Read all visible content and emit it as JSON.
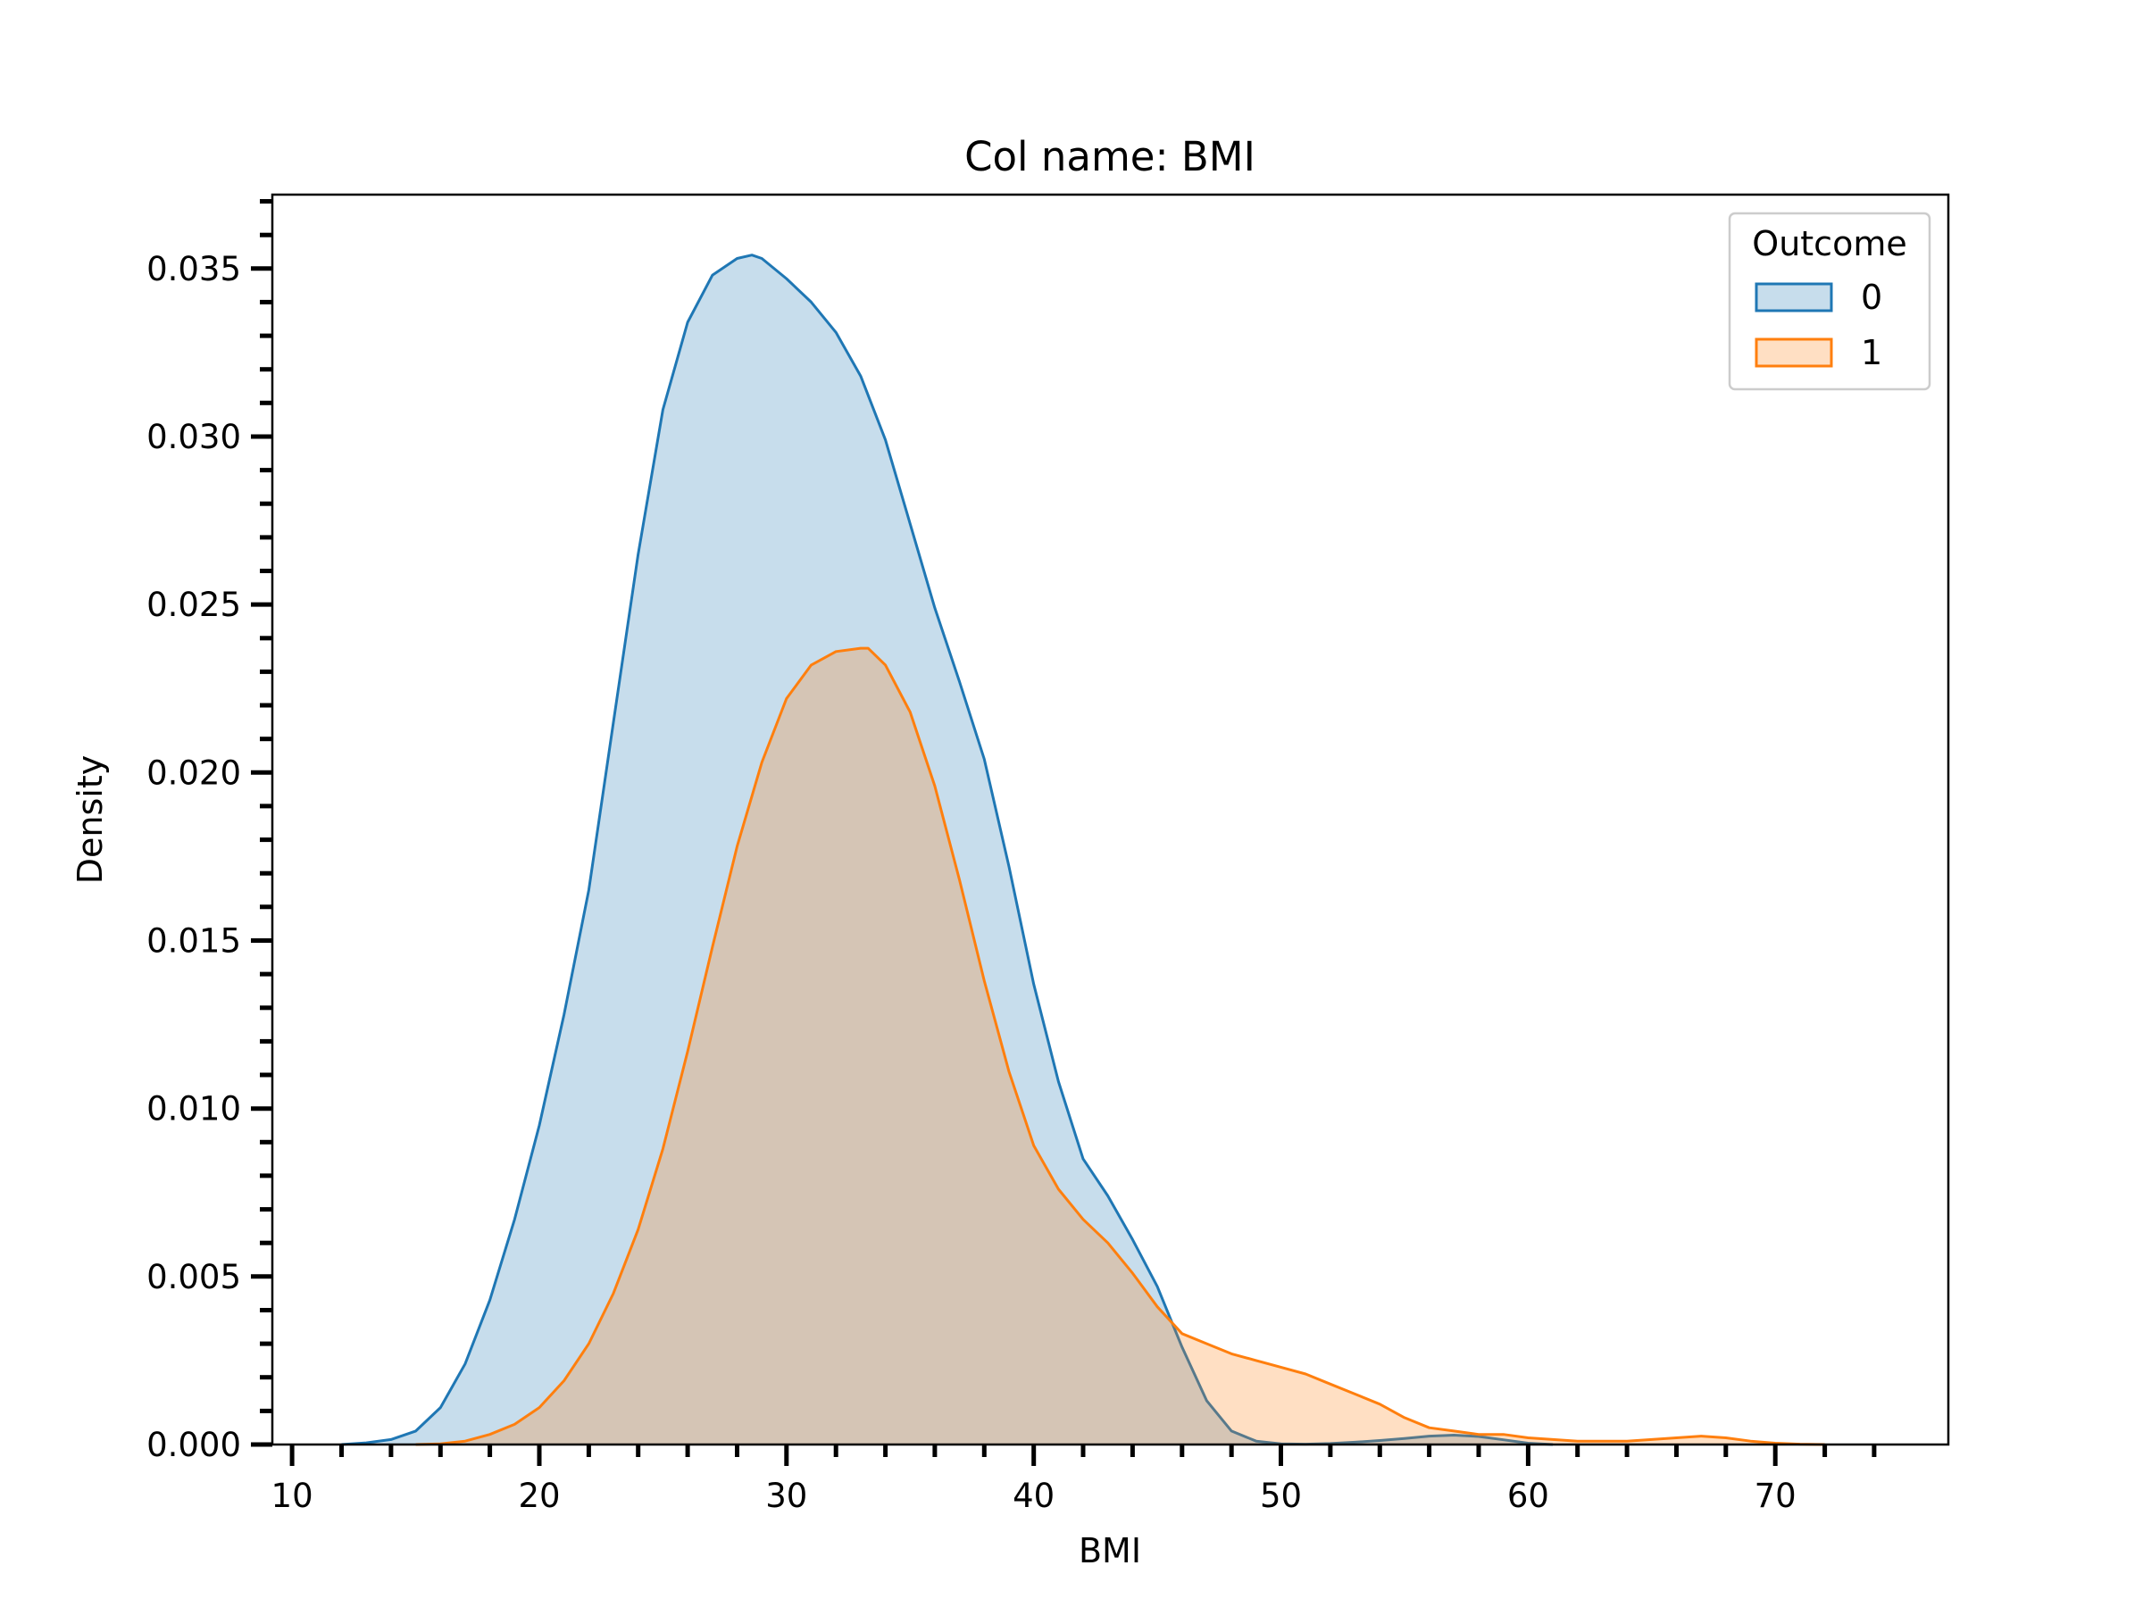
{
  "chart_data": {
    "type": "area",
    "title": "Col name: BMI",
    "xlabel": "BMI",
    "ylabel": "Density",
    "xlim": [
      9.2,
      77
    ],
    "ylim": [
      0,
      0.0372
    ],
    "x_ticks": [
      10,
      20,
      30,
      40,
      50,
      60,
      70
    ],
    "x_tick_labels": [
      "10",
      "20",
      "30",
      "40",
      "50",
      "60",
      "70"
    ],
    "x_minor_step": 2,
    "x_minor_range": [
      10,
      74
    ],
    "y_ticks": [
      0,
      0.005,
      0.01,
      0.015,
      0.02,
      0.025,
      0.03,
      0.035
    ],
    "y_tick_labels": [
      "0.000",
      "0.005",
      "0.010",
      "0.015",
      "0.020",
      "0.025",
      "0.030",
      "0.035"
    ],
    "y_minor_step": 0.001,
    "grid": false,
    "legend": {
      "title": "Outcome",
      "placement": "top-right"
    },
    "series": [
      {
        "name": "0",
        "line_color": "#1f77b4",
        "fill_color": "rgba(31,119,180,0.25)",
        "x": [
          12,
          13,
          14,
          15,
          16,
          17,
          18,
          19,
          20,
          21,
          22,
          23,
          24,
          25,
          26,
          27,
          28,
          28.6,
          29,
          30,
          31,
          32,
          33,
          34,
          35,
          36,
          37,
          38,
          39,
          40,
          41,
          42,
          43,
          44,
          45,
          46,
          47,
          48,
          49,
          50,
          51,
          52,
          53,
          54,
          55,
          56,
          57,
          58,
          59,
          60,
          61
        ],
        "y": [
          0.0,
          5e-05,
          0.00015,
          0.0004,
          0.0011,
          0.0024,
          0.0043,
          0.0067,
          0.0095,
          0.0128,
          0.0165,
          0.0215,
          0.0265,
          0.0308,
          0.0334,
          0.0348,
          0.0353,
          0.0354,
          0.0353,
          0.0347,
          0.034,
          0.0331,
          0.0318,
          0.0299,
          0.0274,
          0.0249,
          0.0227,
          0.0204,
          0.0172,
          0.0137,
          0.0108,
          0.0085,
          0.0074,
          0.0061,
          0.0047,
          0.0029,
          0.0013,
          0.0004,
          0.0001,
          2e-05,
          1e-05,
          3e-05,
          7e-05,
          0.00012,
          0.00018,
          0.00025,
          0.00028,
          0.00024,
          0.00014,
          4e-05,
          0.0
        ]
      },
      {
        "name": "1",
        "line_color": "#ff7f0e",
        "fill_color": "rgba(255,127,14,0.25)",
        "x": [
          15,
          16,
          17,
          18,
          19,
          20,
          21,
          22,
          23,
          24,
          25,
          26,
          27,
          28,
          29,
          30,
          31,
          32,
          33,
          33.3,
          34,
          35,
          36,
          37,
          38,
          39,
          40,
          41,
          42,
          43,
          44,
          45,
          46,
          47,
          48,
          49,
          50,
          51,
          52,
          53,
          54,
          55,
          56,
          57,
          58,
          59,
          60,
          61,
          62,
          63,
          64,
          65,
          66,
          67,
          68,
          69,
          70,
          71,
          72
        ],
        "y": [
          0.0,
          2e-05,
          0.0001,
          0.0003,
          0.0006,
          0.0011,
          0.0019,
          0.003,
          0.0045,
          0.0064,
          0.0088,
          0.0117,
          0.0148,
          0.0178,
          0.0203,
          0.0222,
          0.0232,
          0.0236,
          0.0237,
          0.0237,
          0.0232,
          0.0218,
          0.0196,
          0.0168,
          0.0138,
          0.0111,
          0.0089,
          0.0076,
          0.0067,
          0.006,
          0.0051,
          0.0041,
          0.0033,
          0.003,
          0.0027,
          0.0025,
          0.0023,
          0.0021,
          0.0018,
          0.0015,
          0.0012,
          0.0008,
          0.0005,
          0.0004,
          0.0003,
          0.0003,
          0.0002,
          0.00015,
          0.0001,
          0.0001,
          0.0001,
          0.00015,
          0.0002,
          0.00025,
          0.0002,
          0.0001,
          4e-05,
          1e-05,
          0.0
        ]
      }
    ]
  }
}
